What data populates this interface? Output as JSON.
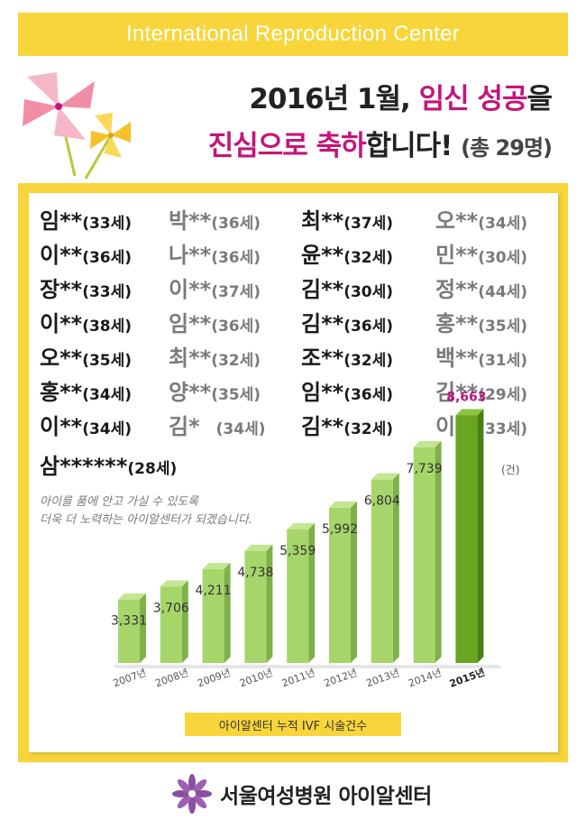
{
  "banner": {
    "title": "International Reproduction Center"
  },
  "headline": {
    "part1": "2016년 1월, ",
    "accent1": "임신 성공",
    "part2": "을",
    "accent2": "진심으로 축하",
    "part3": "합니다! ",
    "count": "(총 29명)"
  },
  "columns": [
    [
      {
        "name": "임**",
        "age": "(33세)"
      },
      {
        "name": "이**",
        "age": "(36세)"
      },
      {
        "name": "장**",
        "age": "(33세)"
      },
      {
        "name": "이**",
        "age": "(38세)"
      },
      {
        "name": "오**",
        "age": "(35세)"
      },
      {
        "name": "홍**",
        "age": "(34세)"
      },
      {
        "name": "이**",
        "age": "(34세)"
      }
    ],
    [
      {
        "name": "박**",
        "age": "(36세)"
      },
      {
        "name": "나**",
        "age": "(36세)"
      },
      {
        "name": "이**",
        "age": "(37세)"
      },
      {
        "name": "임**",
        "age": "(36세)"
      },
      {
        "name": "최**",
        "age": "(32세)"
      },
      {
        "name": "양**",
        "age": "(35세)"
      },
      {
        "name": "김*",
        "age": "(34세)"
      }
    ],
    [
      {
        "name": "최**",
        "age": "(37세)"
      },
      {
        "name": "윤**",
        "age": "(32세)"
      },
      {
        "name": "김**",
        "age": "(30세)"
      },
      {
        "name": "김**",
        "age": "(36세)"
      },
      {
        "name": "조**",
        "age": "(32세)"
      },
      {
        "name": "임**",
        "age": "(36세)"
      },
      {
        "name": "김**",
        "age": "(32세)"
      }
    ],
    [
      {
        "name": "오**",
        "age": "(34세)"
      },
      {
        "name": "민**",
        "age": "(30세)"
      },
      {
        "name": "정**",
        "age": "(44세)"
      },
      {
        "name": "홍**",
        "age": "(35세)"
      },
      {
        "name": "백**",
        "age": "(31세)"
      },
      {
        "name": "김**",
        "age": "(29세)"
      },
      {
        "name": "이**",
        "age": "(33세)"
      }
    ]
  ],
  "last_entry": {
    "name": "삼******",
    "age": "(28세)"
  },
  "message": {
    "line1": "아이를 품에 안고 가실 수 있도록",
    "line2": "더욱 더 노력하는 아이알센터가 되겠습니다."
  },
  "chart_data": {
    "type": "bar",
    "categories": [
      "2007년",
      "2008년",
      "2009년",
      "2010년",
      "2011년",
      "2012년",
      "2013년",
      "2014년",
      "2015년"
    ],
    "values": [
      3331,
      3706,
      4211,
      4738,
      5359,
      5992,
      6804,
      7739,
      8663
    ],
    "value_labels": [
      "3,331",
      "3,706",
      "4,211",
      "4,738",
      "5,359",
      "5,992",
      "6,804",
      "7,739",
      "8,663"
    ],
    "highlight_index": 8,
    "unit": "(건)",
    "caption": "아이알센터 누적 IVF 시술건수",
    "colors": {
      "bar": "#a6d66a",
      "bar_side": "#7fb04a",
      "bar_top": "#c3e693",
      "highlight": "#6aa522",
      "highlight_side": "#4c7e14",
      "highlight_top": "#8bc43e",
      "highlight_label": "#b5177a"
    }
  },
  "footer": {
    "label": "서울여성병원 아이알센터"
  },
  "colors": {
    "accent": "#c4157a",
    "frame": "#f8d53b",
    "logo": "#8a4fa0"
  }
}
